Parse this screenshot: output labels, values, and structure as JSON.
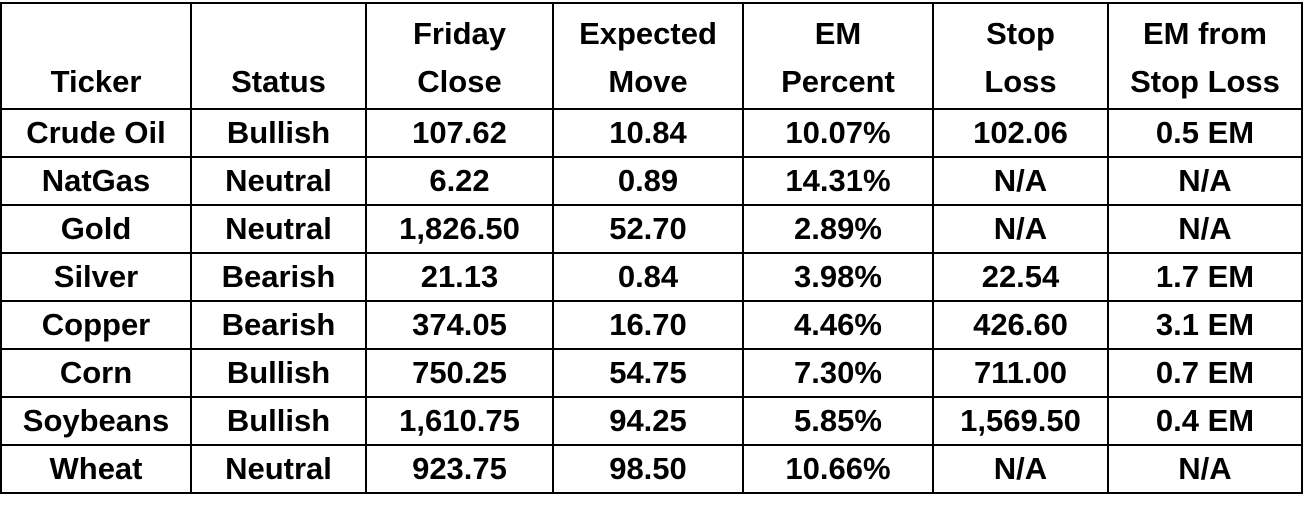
{
  "headers": [
    [
      "",
      "Ticker"
    ],
    [
      "",
      "Status"
    ],
    [
      "Friday",
      "Close"
    ],
    [
      "Expected",
      "Move"
    ],
    [
      "EM",
      "Percent"
    ],
    [
      "Stop",
      "Loss"
    ],
    [
      "EM from",
      "Stop Loss"
    ]
  ],
  "rows": [
    [
      "Crude Oil",
      "Bullish",
      "107.62",
      "10.84",
      "10.07%",
      "102.06",
      "0.5 EM"
    ],
    [
      "NatGas",
      "Neutral",
      "6.22",
      "0.89",
      "14.31%",
      "N/A",
      "N/A"
    ],
    [
      "Gold",
      "Neutral",
      "1,826.50",
      "52.70",
      "2.89%",
      "N/A",
      "N/A"
    ],
    [
      "Silver",
      "Bearish",
      "21.13",
      "0.84",
      "3.98%",
      "22.54",
      "1.7 EM"
    ],
    [
      "Copper",
      "Bearish",
      "374.05",
      "16.70",
      "4.46%",
      "426.60",
      "3.1 EM"
    ],
    [
      "Corn",
      "Bullish",
      "750.25",
      "54.75",
      "7.30%",
      "711.00",
      "0.7 EM"
    ],
    [
      "Soybeans",
      "Bullish",
      "1,610.75",
      "94.25",
      "5.85%",
      "1,569.50",
      "0.4 EM"
    ],
    [
      "Wheat",
      "Neutral",
      "923.75",
      "98.50",
      "10.66%",
      "N/A",
      "N/A"
    ]
  ]
}
